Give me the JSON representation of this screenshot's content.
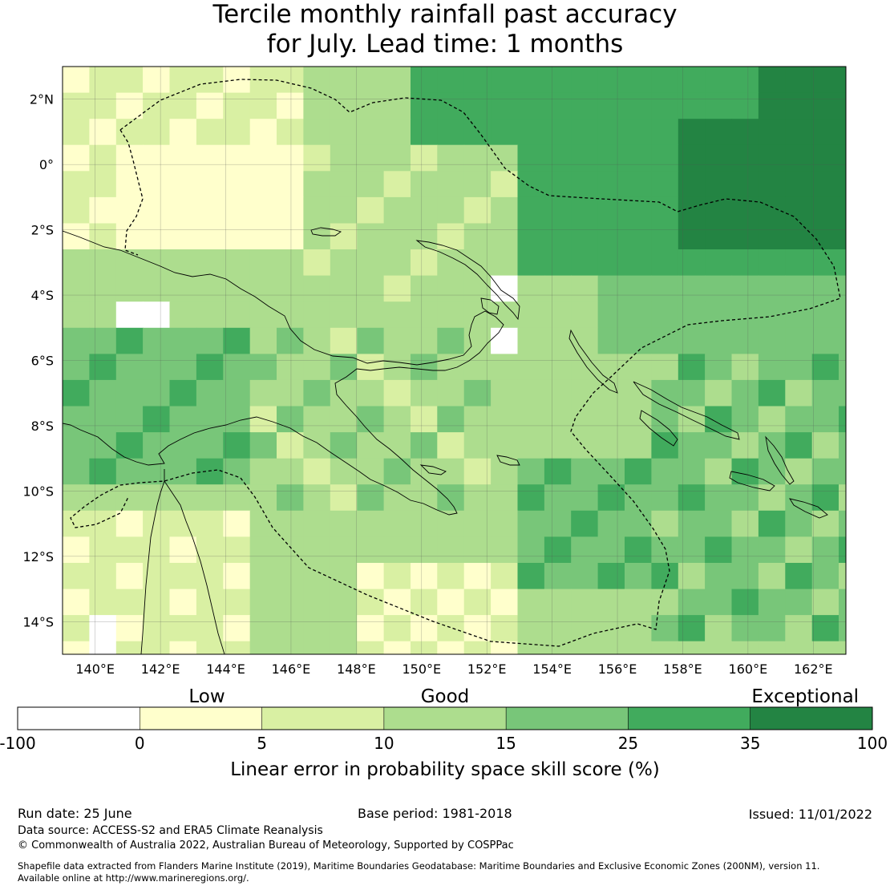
{
  "title": {
    "line1": "Tercile monthly rainfall past accuracy",
    "line2": "for July. Lead time: 1 months"
  },
  "map": {
    "lat_ticks": [
      "2°N",
      "0°",
      "2°S",
      "4°S",
      "6°S",
      "8°S",
      "10°S",
      "12°S",
      "14°S"
    ],
    "lon_ticks": [
      "140°E",
      "142°E",
      "144°E",
      "146°E",
      "148°E",
      "150°E",
      "152°E",
      "154°E",
      "156°E",
      "158°E",
      "160°E",
      "162°E"
    ],
    "lon_range": [
      139,
      163
    ],
    "lat_range": [
      -15,
      3
    ],
    "grid": true,
    "eez_boundary": "dashed",
    "skill_field_pattern": "mostly light-to-medium green over Papua New Guinea and the Solomon Islands; darkest green (exceptional) in the north-east around 158-163°E, 0-2°S; pale yellow (low) over north-west New Guinea and north-east Australia; white (below zero) in a few cells near 152-153°E, 4-5°S and 141-144°E, 5°S and 15°S"
  },
  "colorbar": {
    "categories": [
      {
        "from": "-100",
        "to": "0",
        "color": "#ffffff"
      },
      {
        "from": "0",
        "to": "5",
        "color": "#ffffcc"
      },
      {
        "from": "5",
        "to": "10",
        "color": "#d9f0a3"
      },
      {
        "from": "10",
        "to": "15",
        "color": "#addd8e"
      },
      {
        "from": "15",
        "to": "25",
        "color": "#78c679"
      },
      {
        "from": "25",
        "to": "35",
        "color": "#41ab5d"
      },
      {
        "from": "35",
        "to": "100",
        "color": "#238443"
      }
    ],
    "tick_labels": [
      "-100",
      "0",
      "5",
      "10",
      "15",
      "25",
      "35",
      "100"
    ],
    "category_labels": [
      "Low",
      "Good",
      "Exceptional"
    ],
    "label": "Linear error in probability space skill score (%)"
  },
  "footer": {
    "run_date": "Run date: 25 June",
    "base_period": "Base period: 1981-2018",
    "issued": "Issued: 11/01/2022",
    "data_source": "Data source: ACCESS-S2 and ERA5 Climate Reanalysis",
    "copyright": "© Commonwealth of Australia 2022, Australian Bureau of Meteorology, Supported by COSPPac",
    "shapefile_line1": "Shapefile data extracted from Flanders Marine Institute (2019), Maritime Boundaries Geodatabase: Maritime Boundaries and Exclusive Economic Zones (200NM), version 11.",
    "shapefile_line2": "Available online at http://www.marineregions.org/."
  }
}
